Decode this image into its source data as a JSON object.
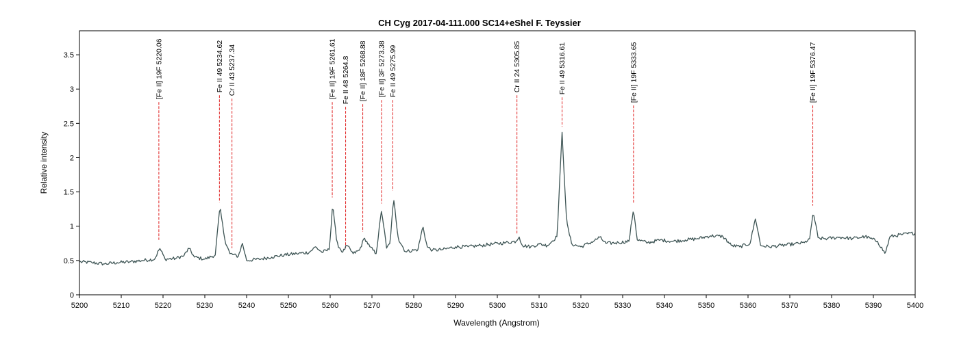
{
  "chart_data": {
    "type": "line",
    "title": "CH Cyg  2017-04-111.000  SC14+eShel F. Teyssier",
    "xlabel": "Wavelength (Angstrom)",
    "ylabel": "Relative intensity",
    "xlim": [
      5200,
      5400
    ],
    "ylim": [
      0,
      3.85
    ],
    "x_ticks": [
      5200,
      5210,
      5220,
      5230,
      5240,
      5250,
      5260,
      5270,
      5280,
      5290,
      5300,
      5310,
      5320,
      5330,
      5340,
      5350,
      5360,
      5370,
      5380,
      5390,
      5400
    ],
    "y_ticks": [
      0,
      0.5,
      1,
      1.5,
      2,
      2.5,
      3,
      3.5
    ],
    "grid": false,
    "colors": {
      "spectrum": "#3d5454",
      "line_markers": "#e02020",
      "frame": "#000000"
    },
    "spectrum": {
      "x": [
        5200,
        5203,
        5206,
        5209,
        5212,
        5215,
        5218,
        5219.2,
        5220.5,
        5223,
        5225,
        5226.2,
        5227.5,
        5230,
        5232.5,
        5233.6,
        5234.8,
        5236,
        5238,
        5239,
        5240,
        5243,
        5246,
        5249,
        5252,
        5255,
        5256.5,
        5258,
        5259.8,
        5260.6,
        5261.6,
        5263,
        5264,
        5265.5,
        5267,
        5268.2,
        5269.5,
        5271,
        5272.3,
        5273.5,
        5274.3,
        5275.2,
        5276.3,
        5278,
        5281,
        5282.2,
        5283.2,
        5284.5,
        5287,
        5290,
        5293,
        5296,
        5299,
        5302,
        5304.5,
        5305.2,
        5306,
        5308,
        5310,
        5312,
        5314.3,
        5315.5,
        5316.6,
        5317.8,
        5320,
        5323,
        5324.5,
        5326,
        5329,
        5331.5,
        5332.6,
        5333.5,
        5336,
        5339,
        5342,
        5345,
        5348,
        5351,
        5354,
        5356,
        5358,
        5360.5,
        5361.8,
        5363,
        5365,
        5368,
        5371,
        5373.5,
        5374.8,
        5375.6,
        5376.8,
        5379,
        5382,
        5385,
        5388,
        5391,
        5392.8,
        5394,
        5397,
        5400
      ],
      "y": [
        0.48,
        0.47,
        0.45,
        0.47,
        0.48,
        0.5,
        0.52,
        0.68,
        0.52,
        0.53,
        0.57,
        0.68,
        0.55,
        0.52,
        0.58,
        1.28,
        0.8,
        0.6,
        0.56,
        0.75,
        0.5,
        0.52,
        0.55,
        0.58,
        0.6,
        0.62,
        0.7,
        0.62,
        0.66,
        1.33,
        0.75,
        0.62,
        0.72,
        0.6,
        0.65,
        0.83,
        0.7,
        0.6,
        1.24,
        0.68,
        0.75,
        1.4,
        0.82,
        0.63,
        0.66,
        1.0,
        0.7,
        0.65,
        0.66,
        0.7,
        0.7,
        0.72,
        0.74,
        0.76,
        0.78,
        0.85,
        0.72,
        0.7,
        0.74,
        0.72,
        0.85,
        2.37,
        1.05,
        0.74,
        0.7,
        0.78,
        0.84,
        0.75,
        0.76,
        0.78,
        1.25,
        0.8,
        0.76,
        0.8,
        0.78,
        0.8,
        0.82,
        0.86,
        0.85,
        0.72,
        0.7,
        0.75,
        1.12,
        0.72,
        0.7,
        0.72,
        0.74,
        0.76,
        0.82,
        1.21,
        0.82,
        0.82,
        0.84,
        0.82,
        0.85,
        0.78,
        0.6,
        0.85,
        0.88,
        0.9
      ]
    },
    "line_markers": [
      {
        "label": "[Fe II] 19F 5220.06",
        "x": 5219.0,
        "y_top": 2.85,
        "y_bottom": 0.8
      },
      {
        "label": "Fe II 49 5234.62",
        "x": 5233.5,
        "y_top": 2.95,
        "y_bottom": 1.35
      },
      {
        "label": "Cr II 43 5237.34",
        "x": 5236.5,
        "y_top": 2.9,
        "y_bottom": 0.68
      },
      {
        "label": "[Fe II] 19F 5261.61",
        "x": 5260.5,
        "y_top": 2.85,
        "y_bottom": 1.42
      },
      {
        "label": "Fe II 48 5264.8",
        "x": 5263.7,
        "y_top": 2.78,
        "y_bottom": 0.68
      },
      {
        "label": "[Fe II] 18F 5268.88",
        "x": 5267.8,
        "y_top": 2.82,
        "y_bottom": 0.92
      },
      {
        "label": "[Fe II] 3F 5273.38",
        "x": 5272.3,
        "y_top": 2.88,
        "y_bottom": 1.33
      },
      {
        "label": "Fe II 49 5275.99",
        "x": 5275.0,
        "y_top": 2.88,
        "y_bottom": 1.52
      },
      {
        "label": "Cr II 24 5305.85",
        "x": 5304.7,
        "y_top": 2.95,
        "y_bottom": 0.88
      },
      {
        "label": "Fe II 49 5316.61",
        "x": 5315.5,
        "y_top": 2.92,
        "y_bottom": 2.45
      },
      {
        "label": "[Fe II] 19F 5333.65",
        "x": 5332.6,
        "y_top": 2.8,
        "y_bottom": 1.33
      },
      {
        "label": "[Fe II] 19F 5376.47",
        "x": 5375.5,
        "y_top": 2.8,
        "y_bottom": 1.3
      }
    ]
  }
}
